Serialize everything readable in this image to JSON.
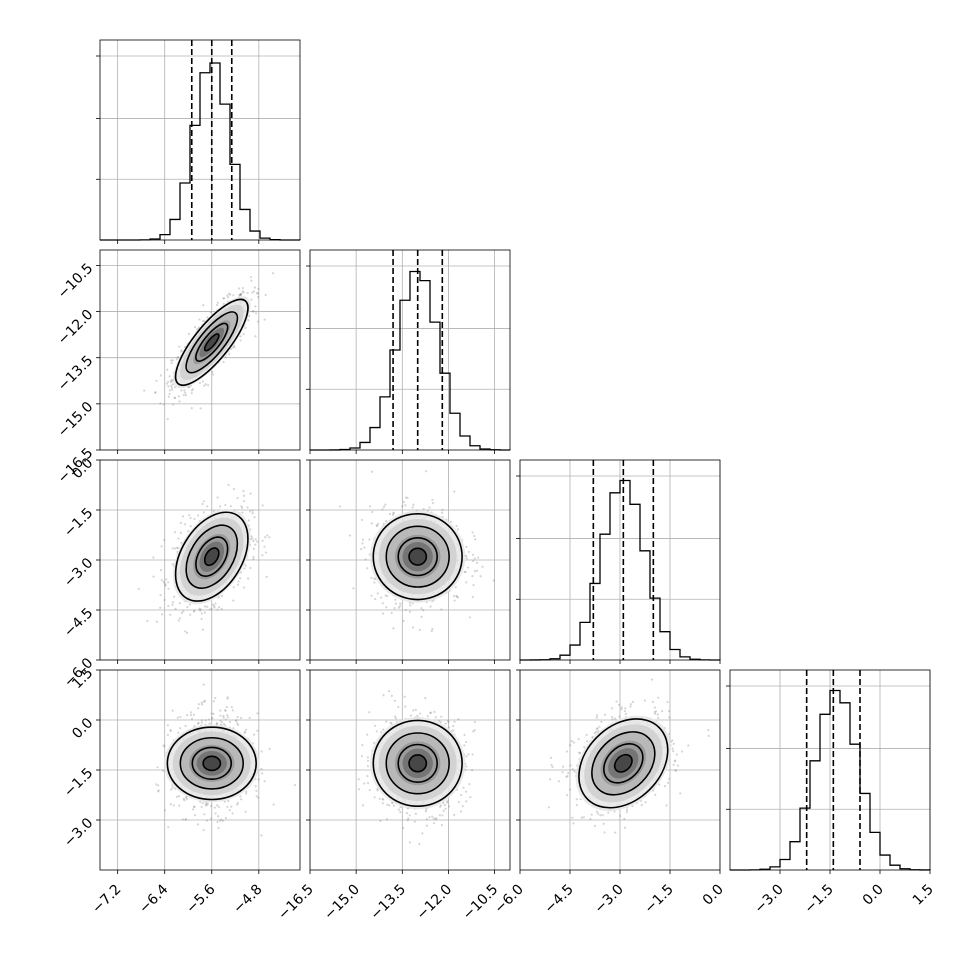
{
  "chart_data": {
    "type": "corner",
    "parameters": [
      {
        "mean": -5.6,
        "sd": 0.3,
        "quantiles": [
          -5.94,
          -5.6,
          -5.26
        ],
        "range": [
          -7.5,
          -4.1
        ],
        "ticks": [
          -7.2,
          -6.4,
          -5.6,
          -4.8
        ],
        "tick_labels": [
          "−7.2",
          "−6.4",
          "−5.6",
          "−4.8"
        ]
      },
      {
        "mean": -13.0,
        "sd": 0.68,
        "quantiles": [
          -13.8,
          -13.0,
          -12.2
        ],
        "range": [
          -16.5,
          -10.0
        ],
        "ticks": [
          -16.5,
          -15.0,
          -13.5,
          -12.0,
          -10.5
        ],
        "tick_labels": [
          "−16.5",
          "−15.0",
          "−13.5",
          "−12.0",
          "−10.5"
        ]
      },
      {
        "mean": -2.9,
        "sd": 0.65,
        "quantiles": [
          -3.8,
          -2.9,
          -2.0
        ],
        "range": [
          -6.0,
          0.0
        ],
        "ticks": [
          -6.0,
          -4.5,
          -3.0,
          -1.5,
          0.0
        ],
        "tick_labels": [
          "−6.0",
          "−4.5",
          "−3.0",
          "−1.5",
          "0.0"
        ]
      },
      {
        "mean": -1.3,
        "sd": 0.65,
        "quantiles": [
          -2.2,
          -1.4,
          -0.6
        ],
        "range": [
          -4.5,
          1.5
        ],
        "ticks": [
          -3.0,
          -1.5,
          0.0,
          1.5
        ],
        "tick_labels": [
          "−3.0",
          "−1.5",
          "0.0",
          "1.5"
        ]
      }
    ],
    "correlations": {
      "0-1": 0.8,
      "0-2": 0.4,
      "0-3": 0.0,
      "1-2": 0.0,
      "1-3": 0.0,
      "2-3": 0.3
    },
    "grid": true,
    "histogram_bins": 20
  }
}
